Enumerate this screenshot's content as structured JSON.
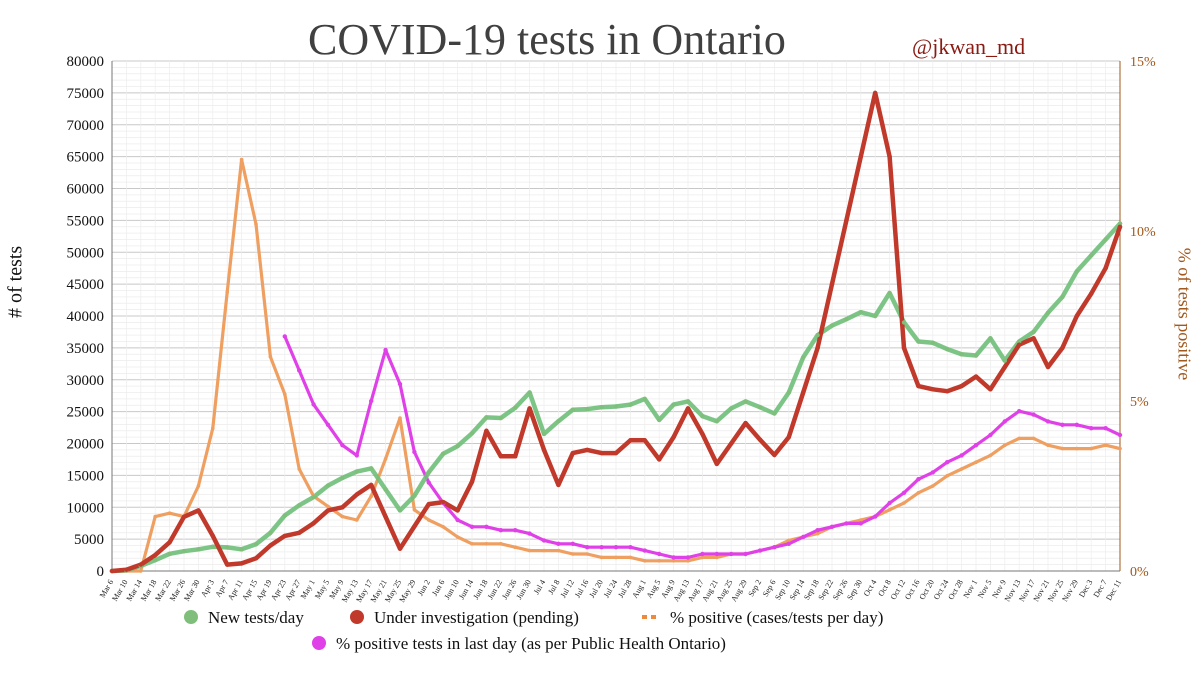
{
  "title": "COVID-19 tests in Ontario",
  "handle": "@jkwan_md",
  "colors": {
    "new_tests": "#7fbf7b",
    "new_tests_line": "#6fbf7a",
    "pending": "#c0392b",
    "pos_orange": "#ef9f60",
    "pho_magenta": "#e040e8",
    "grid": "#d9d9d9",
    "right_axis": "#a0581c"
  },
  "chart_data": {
    "type": "line",
    "title": "COVID-19 tests in Ontario",
    "ylabel": "# of tests",
    "y2label": "% of tests positive",
    "ylim": [
      0,
      80000
    ],
    "y2lim": [
      0,
      15
    ],
    "yticks": [
      "0",
      "5000",
      "10000",
      "15000",
      "20000",
      "25000",
      "30000",
      "35000",
      "40000",
      "45000",
      "50000",
      "55000",
      "60000",
      "65000",
      "70000",
      "75000",
      "80000"
    ],
    "y2ticks": [
      "0%",
      "5%",
      "10%",
      "15%"
    ],
    "categories": [
      "Mar 6",
      "Mar 10",
      "Mar 14",
      "Mar 18",
      "Mar 22",
      "Mar 26",
      "Mar 30",
      "Apr 3",
      "Apr 7",
      "Apr 11",
      "Apr 15",
      "Apr 19",
      "Apr 23",
      "Apr 27",
      "May 1",
      "May 5",
      "May 9",
      "May 13",
      "May 17",
      "May 21",
      "May 25",
      "May 29",
      "Jun 2",
      "Jun 6",
      "Jun 10",
      "Jun 14",
      "Jun 18",
      "Jun 22",
      "Jun 26",
      "Jun 30",
      "Jul 4",
      "Jul 8",
      "Jul 12",
      "Jul 16",
      "Jul 20",
      "Jul 24",
      "Jul 28",
      "Aug 1",
      "Aug 5",
      "Aug 9",
      "Aug 13",
      "Aug 17",
      "Aug 21",
      "Aug 25",
      "Aug 29",
      "Sep 2",
      "Sep 6",
      "Sep 10",
      "Sep 14",
      "Sep 18",
      "Sep 22",
      "Sep 26",
      "Sep 30",
      "Oct 4",
      "Oct 8",
      "Oct 12",
      "Oct 16",
      "Oct 20",
      "Oct 24",
      "Oct 28",
      "Nov 1",
      "Nov 5",
      "Nov 9",
      "Nov 13",
      "Nov 17",
      "Nov 21",
      "Nov 25",
      "Nov 29",
      "Dec 3",
      "Dec 7",
      "Dec 11"
    ],
    "legend": [
      "New tests/day",
      "Under investigation (pending)",
      "% positive (cases/tests per day)",
      "% positive tests in last day (as per Public Health Ontario)"
    ],
    "series": [
      {
        "name": "New tests/day",
        "axis": "left",
        "values": [
          0,
          100,
          800,
          1700,
          2700,
          3100,
          3400,
          3800,
          3700,
          3400,
          4200,
          6000,
          8700,
          10300,
          11600,
          13400,
          14600,
          15600,
          16100,
          12800,
          9500,
          11800,
          15500,
          18400,
          19600,
          21600,
          24100,
          24000,
          25600,
          28000,
          21500,
          23500,
          25300,
          25400,
          25700,
          25800,
          26100,
          27000,
          23700,
          26100,
          26600,
          24300,
          23500,
          25500,
          26600,
          25700,
          24700,
          28000,
          33500,
          37000,
          38500,
          39500,
          40600,
          40000,
          43600,
          39000,
          36000,
          35800,
          34800,
          34000,
          33800,
          36500,
          33000,
          36000,
          37500,
          40500,
          43000,
          47000,
          49500,
          52000,
          54500
        ]
      },
      {
        "name": "Under investigation (pending)",
        "axis": "left",
        "values": [
          0,
          200,
          1000,
          2500,
          4500,
          8500,
          9500,
          5500,
          1000,
          1200,
          2000,
          4000,
          5500,
          6000,
          7500,
          9500,
          10000,
          12000,
          13500,
          8500,
          3500,
          7000,
          10500,
          10800,
          9500,
          14000,
          22000,
          18000,
          18000,
          25500,
          19000,
          13500,
          18500,
          19000,
          18500,
          18500,
          20500,
          20500,
          17500,
          21000,
          25500,
          21500,
          16800,
          20000,
          23200,
          20600,
          18200,
          21000,
          28000,
          35000,
          45000,
          55000,
          65000,
          75000,
          65000,
          35000,
          29000,
          28500,
          28200,
          29000,
          30500,
          28500,
          32000,
          35500,
          36500,
          32000,
          35000,
          40000,
          43500,
          47500,
          54000
        ]
      },
      {
        "name": "% positive (cases/tests per day)",
        "axis": "right",
        "values": [
          0,
          0,
          0,
          1.6,
          1.7,
          1.6,
          2.5,
          4.2,
          8.2,
          12.1,
          10.2,
          6.3,
          5.2,
          3.0,
          2.2,
          1.9,
          1.6,
          1.5,
          2.2,
          3.3,
          4.5,
          1.8,
          1.5,
          1.3,
          1.0,
          0.8,
          0.8,
          0.8,
          0.7,
          0.6,
          0.6,
          0.6,
          0.5,
          0.5,
          0.4,
          0.4,
          0.4,
          0.3,
          0.3,
          0.3,
          0.3,
          0.4,
          0.4,
          0.5,
          0.5,
          0.6,
          0.7,
          0.9,
          1.0,
          1.1,
          1.3,
          1.4,
          1.5,
          1.6,
          1.8,
          2.0,
          2.3,
          2.5,
          2.8,
          3.0,
          3.2,
          3.4,
          3.7,
          3.9,
          3.9,
          3.7,
          3.6,
          3.6,
          3.6,
          3.7,
          3.6
        ]
      },
      {
        "name": "% positive tests in last day (as per Public Health Ontario)",
        "axis": "right",
        "values": [
          null,
          null,
          null,
          null,
          null,
          null,
          null,
          null,
          null,
          null,
          null,
          null,
          6.9,
          5.9,
          4.9,
          4.3,
          3.7,
          3.4,
          5.0,
          6.5,
          5.5,
          3.5,
          2.6,
          2.0,
          1.5,
          1.3,
          1.3,
          1.2,
          1.2,
          1.1,
          0.9,
          0.8,
          0.8,
          0.7,
          0.7,
          0.7,
          0.7,
          0.6,
          0.5,
          0.4,
          0.4,
          0.5,
          0.5,
          0.5,
          0.5,
          0.6,
          0.7,
          0.8,
          1.0,
          1.2,
          1.3,
          1.4,
          1.4,
          1.6,
          2.0,
          2.3,
          2.7,
          2.9,
          3.2,
          3.4,
          3.7,
          4.0,
          4.4,
          4.7,
          4.6,
          4.4,
          4.3,
          4.3,
          4.2,
          4.2,
          4.0
        ]
      }
    ]
  }
}
